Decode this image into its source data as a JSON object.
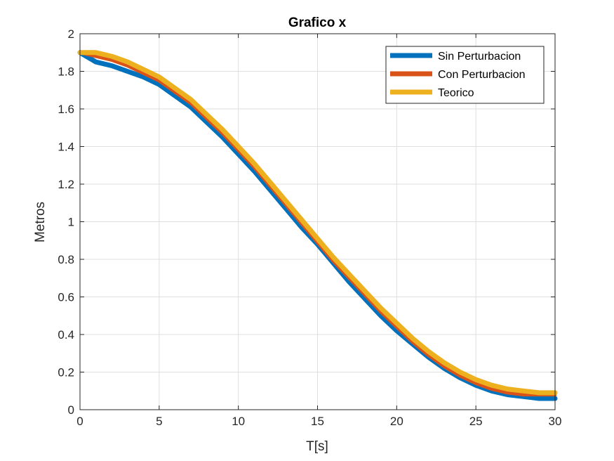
{
  "chart_data": {
    "type": "line",
    "title": "Grafico x",
    "xlabel": "T[s]",
    "ylabel": "Metros",
    "xlim": [
      0,
      30
    ],
    "ylim": [
      0,
      2
    ],
    "xticks": [
      0,
      5,
      10,
      15,
      20,
      25,
      30
    ],
    "yticks": [
      0,
      0.2,
      0.4,
      0.6,
      0.8,
      1,
      1.2,
      1.4,
      1.6,
      1.8,
      2
    ],
    "grid": true,
    "legend_position": "top-right",
    "x": [
      0,
      1,
      2,
      3,
      4,
      5,
      6,
      7,
      8,
      9,
      10,
      11,
      12,
      13,
      14,
      15,
      16,
      17,
      18,
      19,
      20,
      21,
      22,
      23,
      24,
      25,
      26,
      27,
      28,
      29,
      30
    ],
    "series": [
      {
        "name": "Sin Perturbacion",
        "color": "#0072BD",
        "values": [
          1.9,
          1.85,
          1.83,
          1.8,
          1.77,
          1.73,
          1.67,
          1.61,
          1.53,
          1.45,
          1.36,
          1.27,
          1.17,
          1.07,
          0.97,
          0.88,
          0.78,
          0.68,
          0.59,
          0.5,
          0.42,
          0.35,
          0.28,
          0.22,
          0.17,
          0.13,
          0.1,
          0.08,
          0.07,
          0.06,
          0.06
        ]
      },
      {
        "name": "Con Perturbacion",
        "color": "#D95319",
        "values": [
          1.9,
          1.88,
          1.86,
          1.83,
          1.79,
          1.75,
          1.69,
          1.63,
          1.55,
          1.47,
          1.38,
          1.29,
          1.19,
          1.09,
          0.99,
          0.89,
          0.79,
          0.7,
          0.61,
          0.52,
          0.44,
          0.36,
          0.29,
          0.23,
          0.18,
          0.14,
          0.11,
          0.09,
          0.08,
          0.08,
          0.08
        ]
      },
      {
        "name": "Teorico",
        "color": "#EDB120",
        "values": [
          1.9,
          1.9,
          1.88,
          1.85,
          1.81,
          1.77,
          1.71,
          1.65,
          1.57,
          1.49,
          1.4,
          1.31,
          1.21,
          1.11,
          1.01,
          0.91,
          0.81,
          0.72,
          0.63,
          0.54,
          0.46,
          0.38,
          0.31,
          0.25,
          0.2,
          0.16,
          0.13,
          0.11,
          0.1,
          0.09,
          0.09
        ]
      }
    ]
  }
}
